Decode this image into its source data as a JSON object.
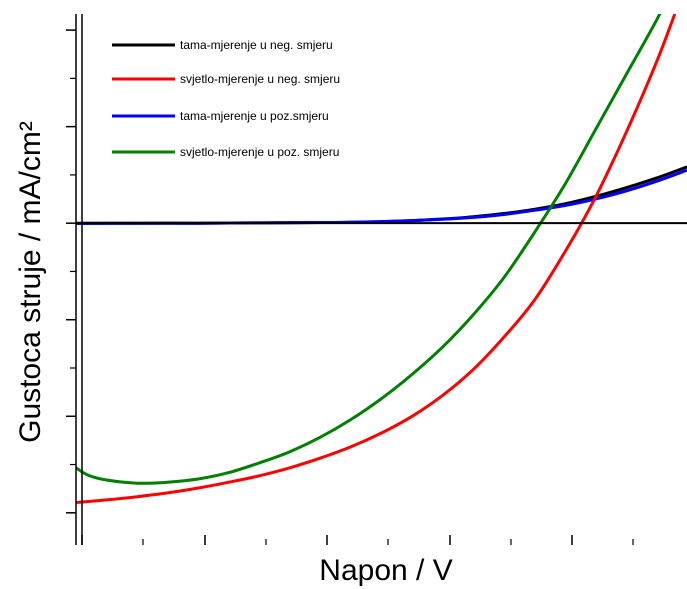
{
  "chart_data": {
    "type": "line",
    "title": "",
    "xlabel": "Napon / V",
    "ylabel": "Gustoca struje / mA/cm²",
    "tick_labels_shown": false,
    "grid": false,
    "legend_position": "top-left",
    "xlim": [
      0,
      1
    ],
    "ylim": [
      -1,
      0.65
    ],
    "reference_line_y": 0,
    "series": [
      {
        "name": "tama-mjerenje u neg. smjeru",
        "color": "#000000",
        "x": [
          0,
          0.1,
          0.2,
          0.3,
          0.4,
          0.45,
          0.5,
          0.55,
          0.6,
          0.65,
          0.7,
          0.75,
          0.8,
          0.85,
          0.9,
          0.95,
          1.0
        ],
        "y": [
          0.0,
          0.0,
          0.0,
          0.001,
          0.002,
          0.003,
          0.005,
          0.008,
          0.013,
          0.02,
          0.03,
          0.043,
          0.06,
          0.083,
          0.11,
          0.14,
          0.175
        ]
      },
      {
        "name": "svjetlo-mjerenje u neg. smjeru",
        "color": "#ff0000",
        "x": [
          0,
          0.05,
          0.1,
          0.15,
          0.2,
          0.25,
          0.3,
          0.35,
          0.4,
          0.45,
          0.5,
          0.55,
          0.6,
          0.65,
          0.7,
          0.75,
          0.8,
          0.85,
          0.9,
          0.95,
          0.98
        ],
        "y": [
          -0.868,
          -0.86,
          -0.85,
          -0.838,
          -0.823,
          -0.805,
          -0.785,
          -0.76,
          -0.73,
          -0.695,
          -0.652,
          -0.6,
          -0.535,
          -0.455,
          -0.355,
          -0.24,
          -0.09,
          0.08,
          0.28,
          0.5,
          0.65
        ]
      },
      {
        "name": "tama-mjerenje u poz.smjeru",
        "color": "#0000ff",
        "x": [
          0,
          0.1,
          0.2,
          0.3,
          0.4,
          0.45,
          0.5,
          0.55,
          0.6,
          0.65,
          0.7,
          0.75,
          0.8,
          0.85,
          0.9,
          0.95,
          1.0
        ],
        "y": [
          -0.001,
          0.0,
          0.0,
          0.001,
          0.002,
          0.003,
          0.005,
          0.008,
          0.012,
          0.018,
          0.027,
          0.04,
          0.055,
          0.075,
          0.1,
          0.13,
          0.165
        ]
      },
      {
        "name": "svjetlo-mjerenje u poz. smjeru",
        "color": "#008000",
        "x": [
          0,
          0.02,
          0.05,
          0.1,
          0.15,
          0.2,
          0.25,
          0.3,
          0.35,
          0.4,
          0.45,
          0.5,
          0.55,
          0.6,
          0.65,
          0.7,
          0.75,
          0.8,
          0.85,
          0.9,
          0.95,
          0.97
        ],
        "y": [
          -0.76,
          -0.783,
          -0.798,
          -0.808,
          -0.805,
          -0.795,
          -0.775,
          -0.745,
          -0.71,
          -0.665,
          -0.61,
          -0.545,
          -0.47,
          -0.385,
          -0.285,
          -0.17,
          -0.03,
          0.12,
          0.29,
          0.46,
          0.63,
          0.71
        ]
      }
    ]
  }
}
